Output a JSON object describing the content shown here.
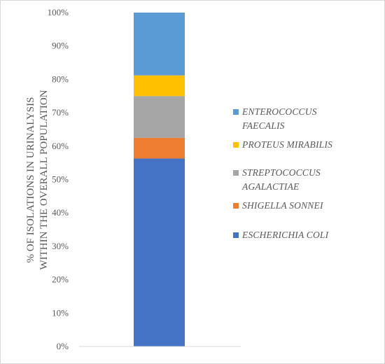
{
  "chart_data": {
    "type": "bar",
    "stacked": true,
    "categories": [
      ""
    ],
    "ylabel": [
      "% OF ISOLATIONS IN URINALYSIS",
      "WITHIN THE OVERALL POPULATION"
    ],
    "ylim": [
      0,
      100
    ],
    "yticks": [
      "0%",
      "10%",
      "20%",
      "30%",
      "40%",
      "50%",
      "60%",
      "70%",
      "80%",
      "90%",
      "100%"
    ],
    "grid": false,
    "legend_position": "right",
    "series": [
      {
        "name": "ESCHERICHIA COLI",
        "values": [
          56.3
        ],
        "color": "#4472C4"
      },
      {
        "name": "SHIGELLA SONNEI",
        "values": [
          6.2
        ],
        "color": "#ED7D31"
      },
      {
        "name": "STREPTOCOCCUS AGALACTIAE",
        "values": [
          12.5
        ],
        "color": "#A5A5A5"
      },
      {
        "name": "PROTEUS MIRABILIS",
        "values": [
          6.2
        ],
        "color": "#FFC000"
      },
      {
        "name": "ENTEROCOCCUS FAECALIS",
        "values": [
          18.8
        ],
        "color": "#5B9BD5"
      }
    ],
    "legend": [
      {
        "lines": [
          "ENTEROCOCCUS",
          "FAECALIS"
        ],
        "color": "#5B9BD5"
      },
      {
        "lines": [
          "PROTEUS MIRABILIS"
        ],
        "color": "#FFC000"
      },
      {
        "lines": [
          "STREPTOCOCCUS",
          "AGALACTIAE"
        ],
        "color": "#A5A5A5"
      },
      {
        "lines": [
          "SHIGELLA SONNEI"
        ],
        "color": "#ED7D31"
      },
      {
        "lines": [
          "ESCHERICHIA COLI"
        ],
        "color": "#4472C4"
      }
    ]
  }
}
